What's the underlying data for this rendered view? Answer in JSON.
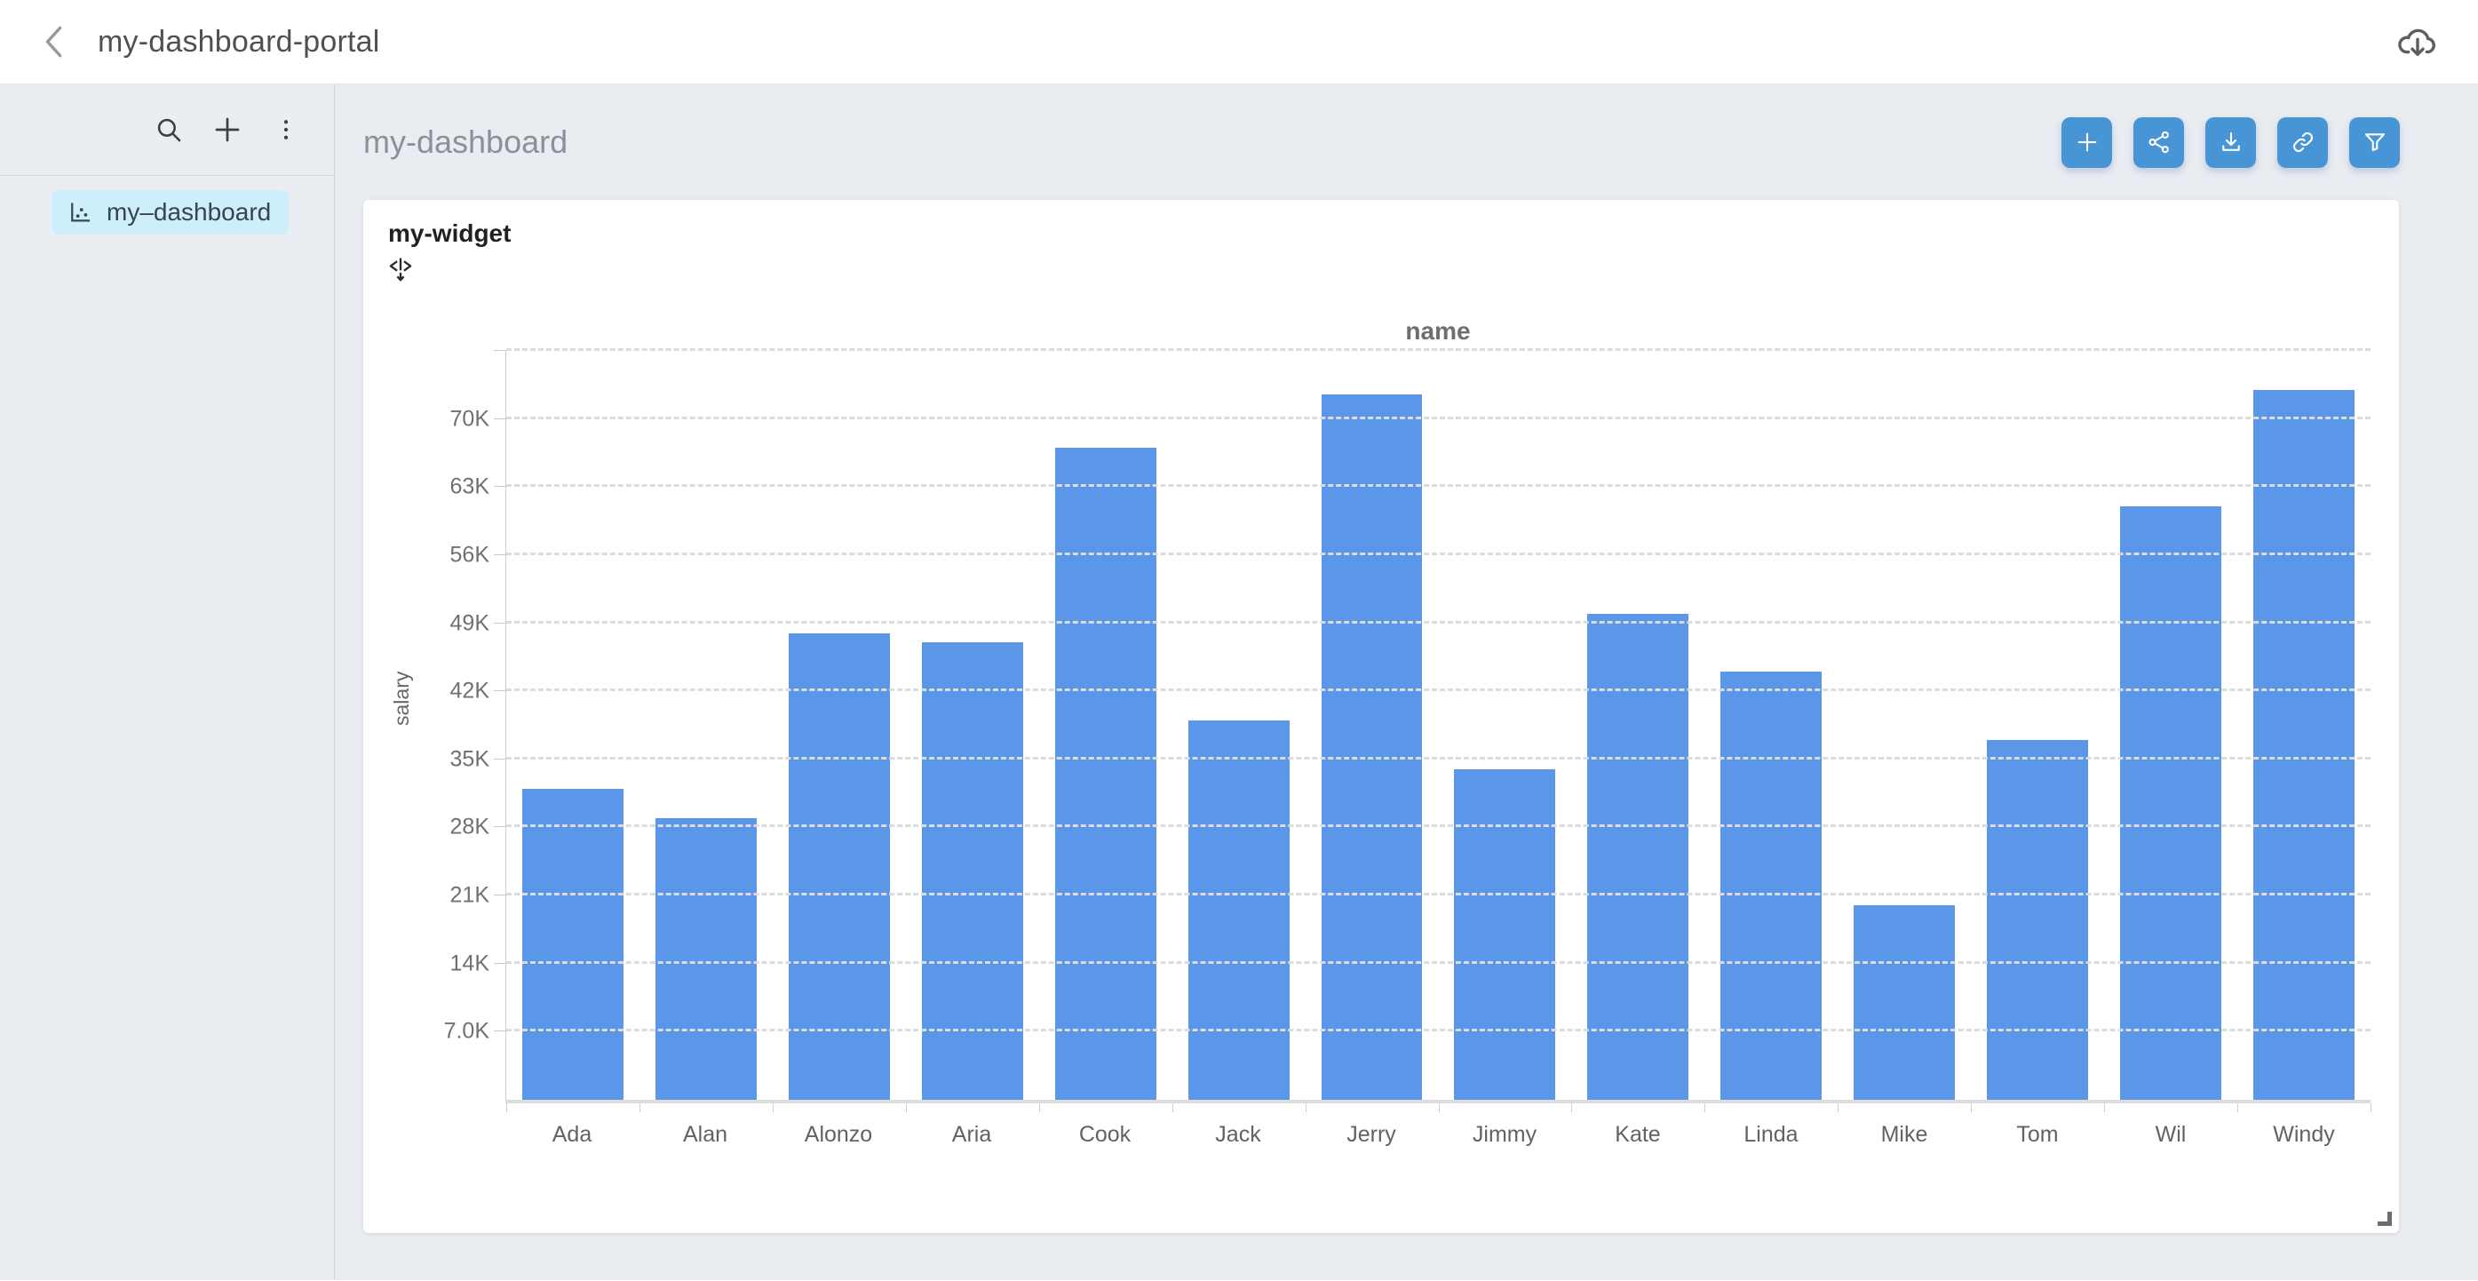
{
  "header": {
    "title": "my-dashboard-portal"
  },
  "sidebar": {
    "selected_item": {
      "label": "my–dashboard"
    }
  },
  "main": {
    "title": "my-dashboard",
    "toolbar": {
      "buttons": [
        "add",
        "share",
        "download",
        "link",
        "filter"
      ]
    }
  },
  "widget": {
    "title": "my-widget"
  },
  "colors": {
    "toolbar_button": "#4795d4",
    "bar": "#5b97e8",
    "sidebar_selected_bg": "#cdeefb",
    "content_background": "#e9ecf1"
  },
  "chart_data": {
    "type": "bar",
    "title": "name",
    "xlabel": "name",
    "ylabel": "salary",
    "categories": [
      "Ada",
      "Alan",
      "Alonzo",
      "Aria",
      "Cook",
      "Jack",
      "Jerry",
      "Jimmy",
      "Kate",
      "Linda",
      "Mike",
      "Tom",
      "Wil",
      "Windy"
    ],
    "values": [
      32000,
      29000,
      48000,
      47000,
      67000,
      39000,
      72500,
      34000,
      50000,
      44000,
      20000,
      37000,
      61000,
      73000
    ],
    "y_ticks": [
      {
        "value": 7000,
        "label": "7.0K"
      },
      {
        "value": 14000,
        "label": "14K"
      },
      {
        "value": 21000,
        "label": "21K"
      },
      {
        "value": 28000,
        "label": "28K"
      },
      {
        "value": 35000,
        "label": "35K"
      },
      {
        "value": 42000,
        "label": "42K"
      },
      {
        "value": 49000,
        "label": "49K"
      },
      {
        "value": 56000,
        "label": "56K"
      },
      {
        "value": 63000,
        "label": "63K"
      },
      {
        "value": 70000,
        "label": "70K"
      }
    ],
    "ylim": [
      0,
      77000
    ],
    "grid_step": 7000,
    "grid": "horizontal-dashed",
    "legend": "none",
    "bar_color": "#5b97e8"
  }
}
